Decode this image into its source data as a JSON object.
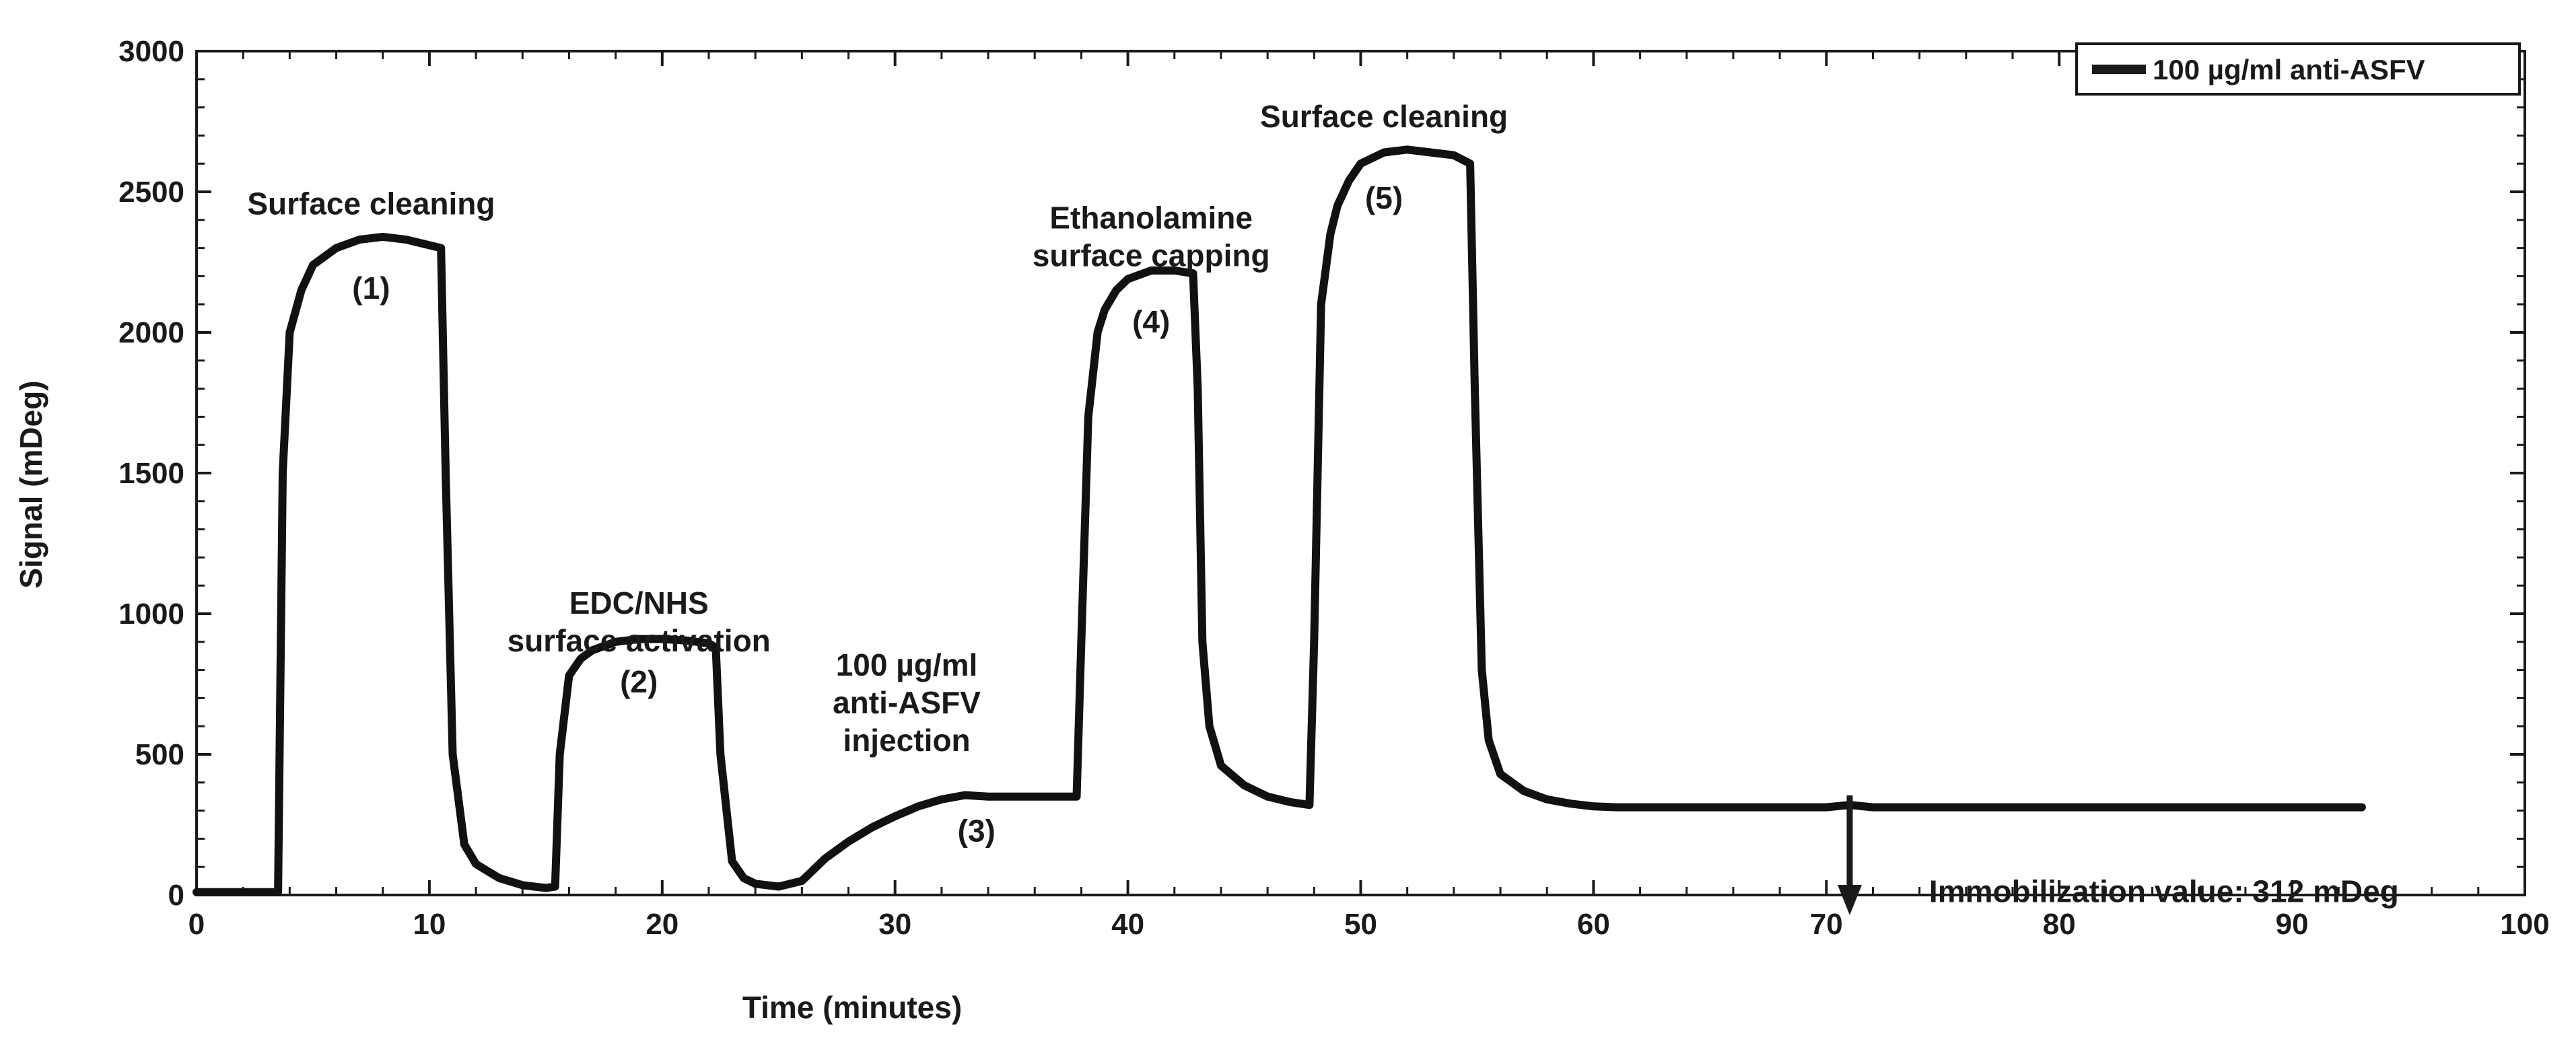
{
  "chart_data": {
    "type": "line",
    "title": "",
    "xlabel": "Time (minutes)",
    "ylabel": "Signal (mDeg)",
    "xlim": [
      0,
      100
    ],
    "ylim": [
      0,
      3000
    ],
    "x_ticks": [
      0,
      10,
      20,
      30,
      40,
      50,
      60,
      70,
      80,
      90,
      100
    ],
    "y_ticks": [
      0,
      500,
      1000,
      1500,
      2000,
      2500,
      3000
    ],
    "grid": false,
    "legend": {
      "position": "top-right",
      "entries": [
        "100 µg/ml anti-ASFV"
      ]
    },
    "series": [
      {
        "name": "100 µg/ml anti-ASFV",
        "x": [
          0,
          3.5,
          3.7,
          4.0,
          4.5,
          5.0,
          6.0,
          7.0,
          8.0,
          9.0,
          10.0,
          10.5,
          10.7,
          11.0,
          11.5,
          12.0,
          13.0,
          14.0,
          15.0,
          15.4,
          15.6,
          16.0,
          16.5,
          17.0,
          18.0,
          19.0,
          20.0,
          21.0,
          22.0,
          22.3,
          22.5,
          23.0,
          23.5,
          24.0,
          25.0,
          26.0,
          26.5,
          27.0,
          28.0,
          29.0,
          30.0,
          31.0,
          32.0,
          33.0,
          34.0,
          35.0,
          36.0,
          37.0,
          37.8,
          38.0,
          38.3,
          38.7,
          39.0,
          39.5,
          40.0,
          41.0,
          42.0,
          42.8,
          43.0,
          43.2,
          43.5,
          44.0,
          45.0,
          46.0,
          47.0,
          47.8,
          48.0,
          48.3,
          48.7,
          49.0,
          49.5,
          50.0,
          51.0,
          52.0,
          53.0,
          54.0,
          54.7,
          54.9,
          55.2,
          55.5,
          56.0,
          57.0,
          58.0,
          59.0,
          60.0,
          61.0,
          62.0,
          65.0,
          70.0,
          71.0,
          72.0,
          75.0,
          80.0,
          85.0,
          90.0,
          93.0
        ],
        "y": [
          10,
          10,
          1500,
          2000,
          2150,
          2240,
          2300,
          2330,
          2340,
          2330,
          2310,
          2300,
          1500,
          500,
          180,
          110,
          60,
          35,
          25,
          30,
          500,
          780,
          840,
          870,
          900,
          910,
          910,
          905,
          895,
          880,
          500,
          120,
          60,
          40,
          30,
          50,
          90,
          130,
          190,
          240,
          280,
          315,
          340,
          355,
          350,
          350,
          350,
          350,
          350,
          900,
          1700,
          2000,
          2080,
          2150,
          2190,
          2220,
          2220,
          2210,
          1800,
          900,
          600,
          460,
          390,
          350,
          330,
          320,
          900,
          2100,
          2350,
          2450,
          2540,
          2600,
          2640,
          2650,
          2640,
          2630,
          2600,
          1800,
          800,
          550,
          430,
          370,
          340,
          325,
          315,
          312,
          312,
          312,
          312,
          320,
          312,
          312,
          312,
          312,
          312,
          312
        ]
      }
    ],
    "annotations": [
      {
        "lines": [
          "Surface cleaning"
        ],
        "x": 7.5,
        "y": 2420
      },
      {
        "lines": [
          "(1)"
        ],
        "x": 7.5,
        "y": 2120
      },
      {
        "lines": [
          "EDC/NHS",
          "surface activation"
        ],
        "x": 19.0,
        "y": 1000
      },
      {
        "lines": [
          "(2)"
        ],
        "x": 19.0,
        "y": 720
      },
      {
        "lines": [
          "100 µg/ml",
          "anti-ASFV",
          "injection"
        ],
        "x": 30.5,
        "y": 780
      },
      {
        "lines": [
          "(3)"
        ],
        "x": 33.5,
        "y": 190
      },
      {
        "lines": [
          "Ethanolamine",
          "surface capping"
        ],
        "x": 41.0,
        "y": 2370
      },
      {
        "lines": [
          "(4)"
        ],
        "x": 41.0,
        "y": 2000
      },
      {
        "lines": [
          "Surface cleaning"
        ],
        "x": 51.0,
        "y": 2730
      },
      {
        "lines": [
          "(5)"
        ],
        "x": 51.0,
        "y": 2440
      },
      {
        "lines": [
          "Immobilization value: 312 mDeg"
        ],
        "x": 84.5,
        "y": -25
      }
    ]
  }
}
